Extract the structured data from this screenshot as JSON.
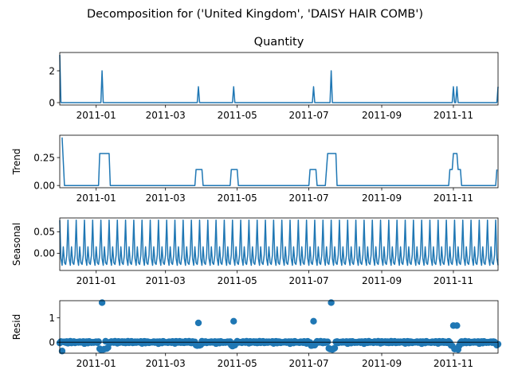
{
  "figure": {
    "suptitle": "Decomposition for ('United Kingdom', 'DAISY HAIR COMB')",
    "line_color": "#1f77b4"
  },
  "chart_data": [
    {
      "type": "line",
      "title": "Quantity",
      "ylabel": "",
      "x_range": [
        "2010-12-01",
        "2011-12-09"
      ],
      "ylim": [
        -0.15,
        3.15
      ],
      "yticks": [
        0,
        2
      ],
      "ytick_labels": [
        "0",
        "2"
      ],
      "xticks": [
        "2011-01-01",
        "2011-03-01",
        "2011-05-01",
        "2011-07-01",
        "2011-09-01",
        "2011-11-01"
      ],
      "xtick_labels": [
        "2011-01",
        "2011-03",
        "2011-05",
        "2011-07",
        "2011-09",
        "2011-11"
      ],
      "baseline": 0,
      "start_value": 3,
      "spikes": [
        {
          "x": "2011-01-06",
          "y": 2
        },
        {
          "x": "2011-03-29",
          "y": 1
        },
        {
          "x": "2011-04-28",
          "y": 1
        },
        {
          "x": "2011-07-05",
          "y": 1
        },
        {
          "x": "2011-07-20",
          "y": 2
        },
        {
          "x": "2011-11-01",
          "y": 1
        },
        {
          "x": "2011-11-04",
          "y": 1
        },
        {
          "x": "2011-12-09",
          "y": 1
        }
      ]
    },
    {
      "type": "line",
      "title": "",
      "ylabel": "Trend",
      "x_range": [
        "2010-12-01",
        "2011-12-09"
      ],
      "ylim": [
        -0.02,
        0.45
      ],
      "yticks": [
        0,
        0.25
      ],
      "ytick_labels": [
        "0.00",
        "0.25"
      ],
      "xticks": [
        "2011-01-01",
        "2011-03-01",
        "2011-05-01",
        "2011-07-01",
        "2011-09-01",
        "2011-11-01"
      ],
      "xtick_labels": [
        "2011-01",
        "2011-03",
        "2011-05",
        "2011-07",
        "2011-09",
        "2011-11"
      ],
      "points": [
        {
          "x": "2010-12-03",
          "y": 0.43
        },
        {
          "x": "2010-12-05",
          "y": 0
        },
        {
          "x": "2011-01-03",
          "y": 0
        },
        {
          "x": "2011-01-04",
          "y": 0.286
        },
        {
          "x": "2011-01-12",
          "y": 0.286
        },
        {
          "x": "2011-01-13",
          "y": 0
        },
        {
          "x": "2011-03-26",
          "y": 0
        },
        {
          "x": "2011-03-27",
          "y": 0.143
        },
        {
          "x": "2011-04-01",
          "y": 0.143
        },
        {
          "x": "2011-04-02",
          "y": 0
        },
        {
          "x": "2011-04-25",
          "y": 0
        },
        {
          "x": "2011-04-26",
          "y": 0.143
        },
        {
          "x": "2011-05-01",
          "y": 0.143
        },
        {
          "x": "2011-05-02",
          "y": 0
        },
        {
          "x": "2011-07-01",
          "y": 0
        },
        {
          "x": "2011-07-02",
          "y": 0.143
        },
        {
          "x": "2011-07-07",
          "y": 0.143
        },
        {
          "x": "2011-07-08",
          "y": 0
        },
        {
          "x": "2011-07-15",
          "y": 0
        },
        {
          "x": "2011-07-17",
          "y": 0.286
        },
        {
          "x": "2011-07-24",
          "y": 0.286
        },
        {
          "x": "2011-07-25",
          "y": 0
        },
        {
          "x": "2011-10-28",
          "y": 0
        },
        {
          "x": "2011-10-29",
          "y": 0.143
        },
        {
          "x": "2011-10-31",
          "y": 0.143
        },
        {
          "x": "2011-11-01",
          "y": 0.286
        },
        {
          "x": "2011-11-04",
          "y": 0.286
        },
        {
          "x": "2011-11-05",
          "y": 0.143
        },
        {
          "x": "2011-11-07",
          "y": 0.143
        },
        {
          "x": "2011-11-08",
          "y": 0
        },
        {
          "x": "2011-12-07",
          "y": 0
        },
        {
          "x": "2011-12-08",
          "y": 0.143
        }
      ]
    },
    {
      "type": "line",
      "title": "",
      "ylabel": "Seasonal",
      "x_range": [
        "2010-12-01",
        "2011-12-09"
      ],
      "ylim": [
        -0.04,
        0.082
      ],
      "yticks": [
        0,
        0.05
      ],
      "ytick_labels": [
        "0.00",
        "0.05"
      ],
      "xticks": [
        "2011-01-01",
        "2011-03-01",
        "2011-05-01",
        "2011-07-01",
        "2011-09-01",
        "2011-11-01"
      ],
      "xtick_labels": [
        "2011-01",
        "2011-03",
        "2011-05",
        "2011-07",
        "2011-09",
        "2011-11"
      ],
      "period_days": 7,
      "weekly_pattern": [
        0.077,
        -0.012,
        -0.028,
        0.015,
        -0.022,
        -0.026,
        -0.004
      ]
    },
    {
      "type": "scatter",
      "title": "",
      "ylabel": "Resid",
      "x_range": [
        "2010-12-01",
        "2011-12-09"
      ],
      "ylim": [
        -0.45,
        1.7
      ],
      "yticks": [
        0,
        1
      ],
      "ytick_labels": [
        "0",
        "1"
      ],
      "xticks": [
        "2011-01-01",
        "2011-03-01",
        "2011-05-01",
        "2011-07-01",
        "2011-09-01",
        "2011-11-01"
      ],
      "xtick_labels": [
        "2011-01",
        "2011-03",
        "2011-05",
        "2011-07",
        "2011-09",
        "2011-11"
      ],
      "noise_amplitude": 0.03,
      "notable_points": [
        {
          "x": "2010-12-03",
          "y": -0.36
        },
        {
          "x": "2011-01-04",
          "y": -0.27
        },
        {
          "x": "2011-01-05",
          "y": -0.31
        },
        {
          "x": "2011-01-06",
          "y": 1.62
        },
        {
          "x": "2011-01-07",
          "y": -0.3
        },
        {
          "x": "2011-01-08",
          "y": -0.28
        },
        {
          "x": "2011-01-10",
          "y": -0.26
        },
        {
          "x": "2011-01-11",
          "y": -0.22
        },
        {
          "x": "2011-03-27",
          "y": -0.12
        },
        {
          "x": "2011-03-28",
          "y": -0.14
        },
        {
          "x": "2011-03-29",
          "y": 0.79
        },
        {
          "x": "2011-03-30",
          "y": -0.13
        },
        {
          "x": "2011-03-31",
          "y": -0.11
        },
        {
          "x": "2011-04-26",
          "y": -0.12
        },
        {
          "x": "2011-04-27",
          "y": -0.16
        },
        {
          "x": "2011-04-28",
          "y": 0.86
        },
        {
          "x": "2011-04-29",
          "y": -0.12
        },
        {
          "x": "2011-07-03",
          "y": -0.14
        },
        {
          "x": "2011-07-04",
          "y": -0.13
        },
        {
          "x": "2011-07-05",
          "y": 0.86
        },
        {
          "x": "2011-07-06",
          "y": -0.12
        },
        {
          "x": "2011-07-18",
          "y": -0.25
        },
        {
          "x": "2011-07-19",
          "y": -0.28
        },
        {
          "x": "2011-07-20",
          "y": 1.62
        },
        {
          "x": "2011-07-21",
          "y": -0.3
        },
        {
          "x": "2011-07-22",
          "y": -0.27
        },
        {
          "x": "2011-07-23",
          "y": -0.24
        },
        {
          "x": "2011-10-30",
          "y": -0.13
        },
        {
          "x": "2011-10-31",
          "y": -0.15
        },
        {
          "x": "2011-11-01",
          "y": 0.68
        },
        {
          "x": "2011-11-02",
          "y": -0.28
        },
        {
          "x": "2011-11-03",
          "y": -0.27
        },
        {
          "x": "2011-11-04",
          "y": 0.68
        },
        {
          "x": "2011-11-05",
          "y": -0.3
        },
        {
          "x": "2011-11-06",
          "y": -0.14
        },
        {
          "x": "2011-12-08",
          "y": -0.12
        },
        {
          "x": "2011-12-09",
          "y": -0.08
        }
      ]
    }
  ]
}
